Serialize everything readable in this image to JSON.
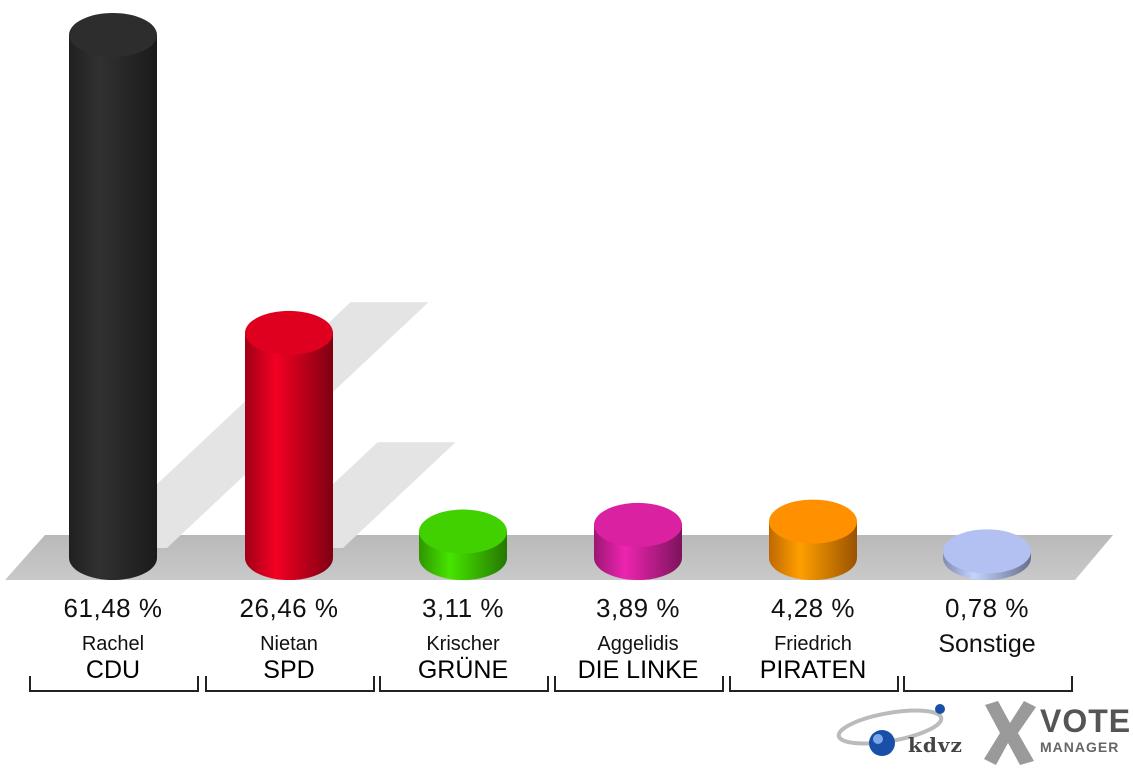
{
  "chart_data": {
    "type": "bar",
    "categories": [
      "CDU",
      "SPD",
      "GRÜNE",
      "DIE LINKE",
      "PIRATEN",
      "Sonstige"
    ],
    "candidates": [
      "Rachel",
      "Nietan",
      "Krischer",
      "Aggelidis",
      "Friedrich",
      ""
    ],
    "values": [
      61.48,
      26.46,
      3.11,
      3.89,
      4.28,
      0.78
    ],
    "value_labels": [
      "61,48 %",
      "26,46 %",
      "3,11 %",
      "3,89 %",
      "4,28 %",
      "0,78 %"
    ],
    "colors": [
      "#2b2b2b",
      "#d4001e",
      "#3ec700",
      "#cf1f9a",
      "#ff8a00",
      "#aab8e6"
    ],
    "ylim": [
      0,
      61.48
    ]
  },
  "logo": {
    "kdvz": "kdvz",
    "vote": "VOTE",
    "manager": "MANAGER"
  }
}
